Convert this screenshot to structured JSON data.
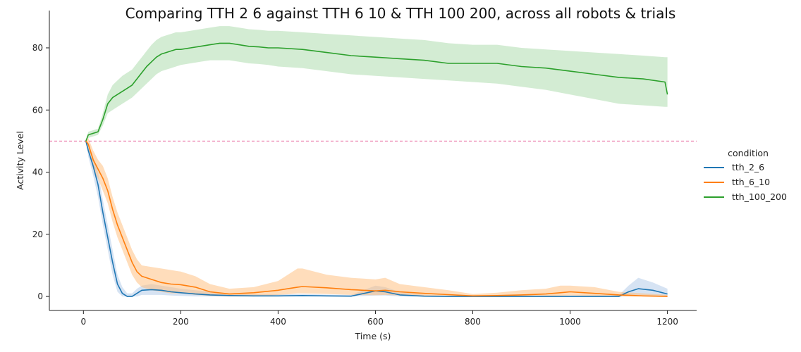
{
  "chart_data": {
    "type": "line",
    "title": "Comparing TTH 2 6 against TTH 6 10 & TTH 100 200, across all robots & trials",
    "xlabel": "Time (s)",
    "ylabel": "Activity Level",
    "xlim": [
      -70,
      1260
    ],
    "ylim": [
      -4.5,
      92
    ],
    "xticks": [
      0,
      200,
      400,
      600,
      800,
      1000,
      1200
    ],
    "yticks": [
      0,
      20,
      40,
      60,
      80
    ],
    "xtick_labels": [
      "0",
      "200",
      "400",
      "600",
      "800",
      "1000",
      "1200"
    ],
    "ytick_labels": [
      "0",
      "20",
      "40",
      "60",
      "80"
    ],
    "reference_line": {
      "y": 50,
      "color": "#e8609a",
      "style": "dashed"
    },
    "legend": {
      "title": "condition",
      "placement": "right-center"
    },
    "grid": false,
    "series": [
      {
        "name": "tth_2_6",
        "color": "#1f77b4",
        "band_color": "#aec7e8",
        "x": [
          5,
          10,
          20,
          30,
          40,
          50,
          60,
          70,
          80,
          90,
          100,
          110,
          120,
          140,
          160,
          180,
          200,
          230,
          260,
          300,
          350,
          400,
          450,
          500,
          550,
          600,
          620,
          650,
          700,
          750,
          800,
          900,
          1000,
          1100,
          1120,
          1140,
          1170,
          1200
        ],
        "y": [
          50,
          47,
          42,
          36,
          27,
          19,
          11,
          4,
          1,
          0,
          0,
          1,
          2,
          2.2,
          2,
          1.5,
          1.2,
          0.8,
          0.5,
          0.3,
          0.2,
          0.2,
          0.3,
          0.2,
          0.1,
          1.8,
          1.5,
          0.5,
          0.1,
          0,
          0,
          0,
          0,
          0,
          1.5,
          2.5,
          2,
          0.8
        ],
        "lower": [
          50,
          45,
          39,
          32,
          23,
          15,
          7,
          1.5,
          0,
          0,
          0,
          0,
          0.5,
          0.5,
          0.5,
          0.3,
          0.2,
          0,
          0,
          0,
          0,
          0,
          0,
          0,
          0,
          0.3,
          0.3,
          0,
          0,
          0,
          0,
          0,
          0,
          0,
          0.2,
          0.5,
          0.3,
          0
        ],
        "upper": [
          50,
          49,
          45,
          40,
          31,
          23,
          15,
          7,
          3,
          1,
          1,
          2.5,
          3.5,
          4,
          3.5,
          3,
          2.5,
          2,
          1.5,
          1,
          0.7,
          0.7,
          0.8,
          0.6,
          0.5,
          3.5,
          3,
          1.5,
          0.5,
          0.2,
          0.5,
          0.3,
          0.3,
          0.4,
          3.5,
          6,
          4.5,
          2.5
        ]
      },
      {
        "name": "tth_6_10",
        "color": "#ff7f0e",
        "band_color": "#ffbb78",
        "x": [
          5,
          10,
          20,
          30,
          40,
          50,
          60,
          70,
          80,
          90,
          100,
          110,
          120,
          140,
          160,
          180,
          200,
          230,
          260,
          300,
          350,
          400,
          420,
          440,
          450,
          500,
          550,
          600,
          620,
          650,
          700,
          750,
          800,
          850,
          900,
          950,
          980,
          1000,
          1050,
          1100,
          1150,
          1200
        ],
        "y": [
          50,
          49,
          44,
          41,
          38,
          34,
          28,
          23,
          19,
          15,
          11,
          8,
          6.5,
          5.5,
          4.5,
          4,
          3.8,
          3,
          1.5,
          0.8,
          1.2,
          2,
          2.5,
          3,
          3.2,
          2.8,
          2.2,
          1.8,
          2,
          1.5,
          1,
          0.6,
          0.2,
          0.3,
          0.5,
          0.8,
          1.2,
          1.5,
          1,
          0.5,
          0.2,
          0
        ],
        "lower": [
          50,
          47,
          41,
          38,
          34,
          30,
          24,
          19,
          15,
          11,
          7,
          4.5,
          3,
          2,
          1.5,
          1,
          1,
          0.5,
          0.2,
          0,
          0,
          0.5,
          0.7,
          1,
          1,
          0.8,
          0.5,
          0.4,
          0.5,
          0.3,
          0.2,
          0,
          0,
          0,
          0,
          0,
          0.2,
          0.3,
          0.2,
          0,
          0,
          0
        ],
        "upper": [
          50,
          51,
          47,
          44,
          42,
          38,
          32,
          27,
          23,
          19,
          15,
          12,
          10,
          9.5,
          9,
          8.5,
          8,
          6.5,
          4,
          2.5,
          3,
          5,
          7,
          9,
          9,
          7,
          6,
          5.5,
          6,
          4,
          3,
          2,
          0.8,
          1.2,
          2,
          2.5,
          3.5,
          3.5,
          3,
          1.5,
          1,
          0.5
        ]
      },
      {
        "name": "tth_100_200",
        "color": "#2ca02c",
        "band_color": "#a8d9a8",
        "x": [
          5,
          10,
          20,
          30,
          40,
          50,
          60,
          70,
          80,
          90,
          100,
          110,
          120,
          130,
          140,
          150,
          160,
          170,
          180,
          190,
          200,
          220,
          240,
          260,
          280,
          300,
          320,
          340,
          360,
          380,
          400,
          450,
          500,
          550,
          600,
          650,
          700,
          750,
          800,
          850,
          900,
          950,
          1000,
          1050,
          1100,
          1150,
          1195,
          1200
        ],
        "y": [
          50,
          52,
          52.5,
          53,
          57,
          62,
          64,
          65,
          66,
          67,
          68,
          70,
          72,
          74,
          75.5,
          77,
          78,
          78.5,
          79,
          79.5,
          79.5,
          80,
          80.5,
          81,
          81.5,
          81.5,
          81,
          80.5,
          80.3,
          80,
          80,
          79.5,
          78.5,
          77.5,
          77,
          76.5,
          76,
          75,
          75,
          75,
          74,
          73.5,
          72.5,
          71.5,
          70.5,
          70,
          69,
          65
        ],
        "lower": [
          50,
          51,
          51.5,
          52,
          55,
          59,
          60,
          61,
          62,
          63,
          64,
          65.5,
          67,
          68.5,
          70,
          71.5,
          72.5,
          73,
          73.5,
          74,
          74.5,
          75,
          75.5,
          76,
          76,
          76,
          75.5,
          75,
          74.8,
          74.5,
          74,
          73.5,
          72.5,
          71.5,
          71,
          70.5,
          70,
          69.5,
          69,
          68.5,
          67.5,
          66.5,
          65,
          63.5,
          62,
          61.5,
          61,
          61
        ],
        "upper": [
          50,
          53,
          53.5,
          54,
          59,
          65,
          68,
          69.5,
          71,
          72,
          73,
          75,
          77,
          79,
          81,
          82.5,
          83.5,
          84,
          84.5,
          85,
          85,
          85.5,
          86,
          86.5,
          87,
          87,
          86.5,
          86,
          85.8,
          85.5,
          85.5,
          85,
          84.5,
          84,
          83.5,
          83,
          82.5,
          81.5,
          81,
          81,
          80,
          79.5,
          79,
          78.5,
          78,
          77.5,
          77,
          77
        ]
      }
    ]
  }
}
